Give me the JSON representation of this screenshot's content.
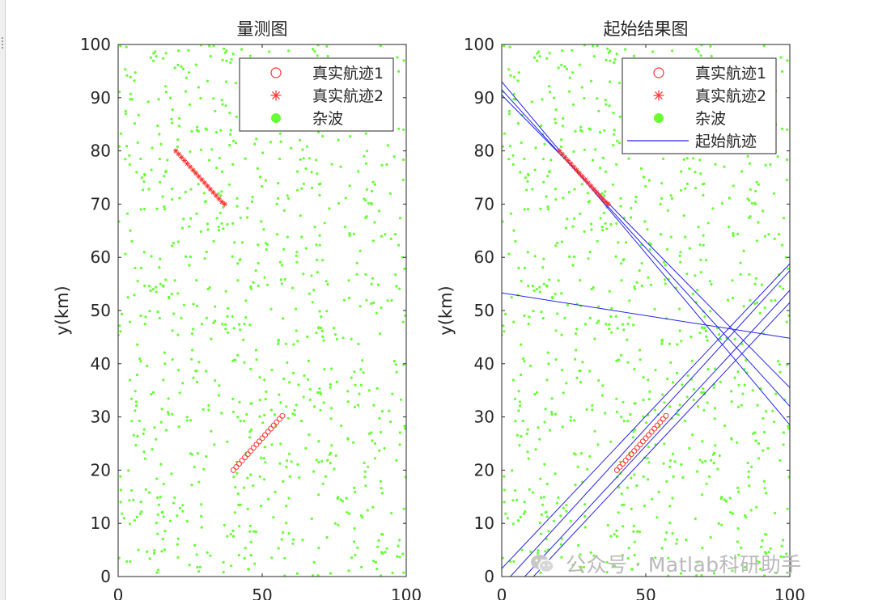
{
  "chart_data": [
    {
      "type": "scatter",
      "title": "量测图",
      "xlabel": "",
      "ylabel": "y(km)",
      "xlim": [
        0,
        100
      ],
      "ylim": [
        0,
        100
      ],
      "xticks": [
        "0",
        "50",
        "100"
      ],
      "yticks": [
        "0",
        "10",
        "20",
        "30",
        "40",
        "50",
        "60",
        "70",
        "80",
        "90",
        "100"
      ],
      "legend_position": "top-right",
      "series": [
        {
          "name": "真实航迹1",
          "marker": "circle",
          "color": "#ff3333",
          "x": [
            40,
            41,
            42,
            43,
            44,
            45,
            46,
            47,
            48,
            49,
            50,
            51,
            52,
            53,
            54,
            55,
            56,
            57
          ],
          "y": [
            20,
            20.6,
            21.2,
            21.8,
            22.4,
            23,
            23.6,
            24.2,
            24.8,
            25.4,
            26,
            26.6,
            27.2,
            27.8,
            28.4,
            29,
            29.6,
            30.2
          ]
        },
        {
          "name": "真实航迹2",
          "marker": "asterisk",
          "color": "#ff3333",
          "x": [
            20,
            21,
            22,
            23,
            24,
            25,
            26,
            27,
            28,
            29,
            30,
            31,
            32,
            33,
            34,
            35,
            36,
            37
          ],
          "y": [
            80,
            79.4,
            78.8,
            78.2,
            77.6,
            77,
            76.4,
            75.8,
            75.2,
            74.6,
            74,
            73.4,
            72.8,
            72.2,
            71.6,
            71,
            70.4,
            70
          ]
        },
        {
          "name": "杂波",
          "marker": "dot",
          "color": "#66ff33",
          "count": 900,
          "distribution": "uniform over [0,100]x[0,100]"
        }
      ]
    },
    {
      "type": "scatter",
      "title": "起始结果图",
      "xlabel": "",
      "ylabel": "y(km)",
      "xlim": [
        0,
        100
      ],
      "ylim": [
        0,
        100
      ],
      "xticks": [
        "0",
        "50",
        "100"
      ],
      "yticks": [
        "0",
        "10",
        "20",
        "30",
        "40",
        "50",
        "60",
        "70",
        "80",
        "90",
        "100"
      ],
      "legend_position": "top-right",
      "series": [
        {
          "name": "真实航迹1",
          "marker": "circle",
          "color": "#ff3333",
          "x": [
            40,
            41,
            42,
            43,
            44,
            45,
            46,
            47,
            48,
            49,
            50,
            51,
            52,
            53,
            54,
            55,
            56,
            57
          ],
          "y": [
            20,
            20.6,
            21.2,
            21.8,
            22.4,
            23,
            23.6,
            24.2,
            24.8,
            25.4,
            26,
            26.6,
            27.2,
            27.8,
            28.4,
            29,
            29.6,
            30.2
          ]
        },
        {
          "name": "真实航迹2",
          "marker": "asterisk",
          "color": "#ff3333",
          "x": [
            20,
            21,
            22,
            23,
            24,
            25,
            26,
            27,
            28,
            29,
            30,
            31,
            32,
            33,
            34,
            35,
            36,
            37
          ],
          "y": [
            80,
            79.4,
            78.8,
            78.2,
            77.6,
            77,
            76.4,
            75.8,
            75.2,
            74.6,
            74,
            73.4,
            72.8,
            72.2,
            71.6,
            71,
            70.4,
            70
          ]
        },
        {
          "name": "杂波",
          "marker": "dot",
          "color": "#66ff33",
          "count": 900,
          "distribution": "uniform over [0,100]x[0,100]"
        },
        {
          "name": "起始航迹",
          "marker": "line",
          "color": "#2222ee",
          "lines": [
            {
              "x": [
                0,
                100
              ],
              "y": [
                93,
                28.5
              ]
            },
            {
              "x": [
                0,
                100
              ],
              "y": [
                91.5,
                32
              ]
            },
            {
              "x": [
                0,
                100
              ],
              "y": [
                90.5,
                35.5
              ]
            },
            {
              "x": [
                0,
                100
              ],
              "y": [
                53.3,
                44.8
              ]
            },
            {
              "x": [
                0,
                100
              ],
              "y": [
                1.5,
                58.8
              ]
            },
            {
              "x": [
                3,
                100
              ],
              "y": [
                0,
                57.5
              ]
            },
            {
              "x": [
                8,
                100
              ],
              "y": [
                0,
                53.8
              ]
            },
            {
              "x": [
                11,
                100
              ],
              "y": [
                0,
                51.5
              ]
            }
          ]
        }
      ]
    }
  ],
  "watermark": {
    "text": "公众号 · Matlab科研助手",
    "icon": "wechat-icon"
  }
}
